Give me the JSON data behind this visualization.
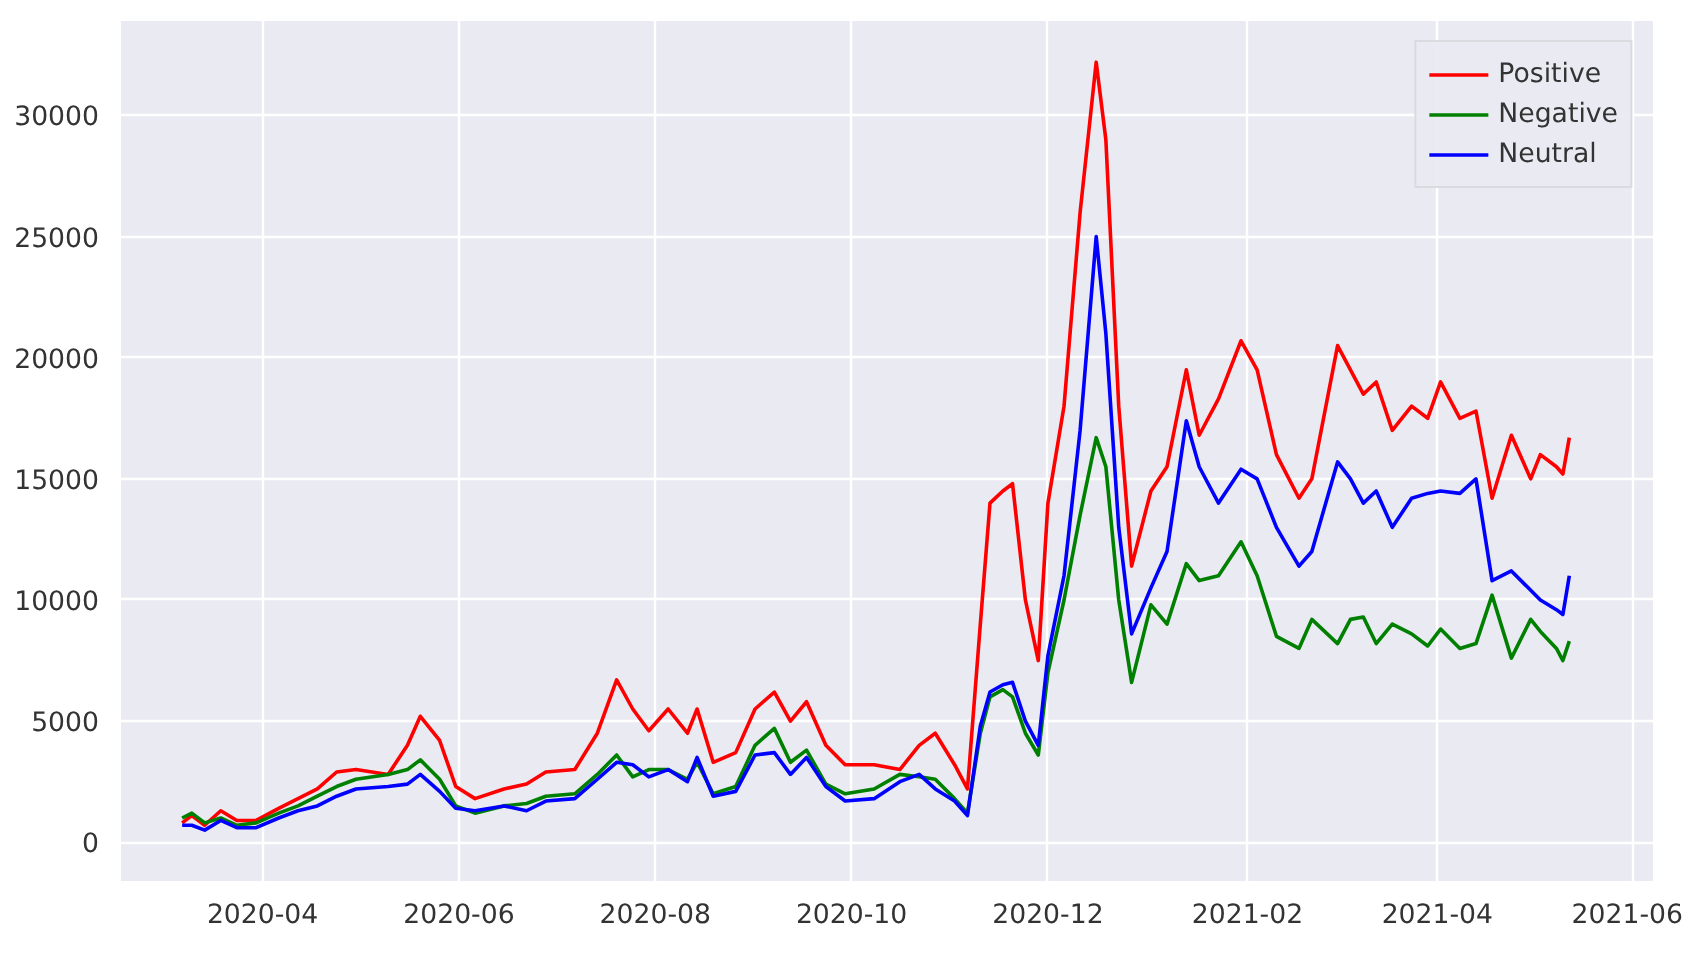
{
  "chart_data": {
    "type": "line",
    "x": [
      "2020-03-07",
      "2020-03-10",
      "2020-03-14",
      "2020-03-19",
      "2020-03-24",
      "2020-03-30",
      "2020-04-06",
      "2020-04-12",
      "2020-04-18",
      "2020-04-24",
      "2020-04-30",
      "2020-05-10",
      "2020-05-16",
      "2020-05-20",
      "2020-05-26",
      "2020-05-31",
      "2020-06-06",
      "2020-06-15",
      "2020-06-22",
      "2020-06-28",
      "2020-07-07",
      "2020-07-14",
      "2020-07-20",
      "2020-07-25",
      "2020-07-30",
      "2020-08-05",
      "2020-08-11",
      "2020-08-14",
      "2020-08-19",
      "2020-08-26",
      "2020-09-01",
      "2020-09-07",
      "2020-09-12",
      "2020-09-17",
      "2020-09-23",
      "2020-09-29",
      "2020-10-08",
      "2020-10-16",
      "2020-10-22",
      "2020-10-27",
      "2020-11-02",
      "2020-11-06",
      "2020-11-10",
      "2020-11-13",
      "2020-11-17",
      "2020-11-20",
      "2020-11-24",
      "2020-11-28",
      "2020-12-01",
      "2020-12-06",
      "2020-12-11",
      "2020-12-16",
      "2020-12-19",
      "2020-12-23",
      "2020-12-27",
      "2021-01-02",
      "2021-01-07",
      "2021-01-13",
      "2021-01-17",
      "2021-01-23",
      "2021-01-30",
      "2021-02-04",
      "2021-02-10",
      "2021-02-17",
      "2021-02-21",
      "2021-03-01",
      "2021-03-05",
      "2021-03-09",
      "2021-03-13",
      "2021-03-18",
      "2021-03-24",
      "2021-03-29",
      "2021-04-02",
      "2021-04-08",
      "2021-04-13",
      "2021-04-18",
      "2021-04-24",
      "2021-04-30",
      "2021-05-03",
      "2021-05-08",
      "2021-05-10",
      "2021-05-12"
    ],
    "series": [
      {
        "name": "Positive",
        "color": "#ff0000",
        "values": [
          800,
          1100,
          700,
          1300,
          900,
          900,
          1400,
          1800,
          2200,
          2900,
          3000,
          2800,
          4000,
          5200,
          4200,
          2300,
          1800,
          2200,
          2400,
          2900,
          3000,
          4500,
          6700,
          5500,
          4600,
          5500,
          4500,
          5500,
          3300,
          3700,
          5500,
          6200,
          5000,
          5800,
          4000,
          3200,
          3200,
          3000,
          4000,
          4500,
          3200,
          2200,
          9000,
          14000,
          14500,
          14800,
          10000,
          7500,
          14000,
          18000,
          26000,
          32200,
          29000,
          18000,
          11400,
          14500,
          15500,
          19500,
          16800,
          18300,
          20700,
          19500,
          16000,
          14200,
          15000,
          20500,
          19500,
          18500,
          19000,
          17000,
          18000,
          17500,
          19000,
          17500,
          17800,
          14200,
          16800,
          15000,
          16000,
          15500,
          15200,
          16700
        ]
      },
      {
        "name": "Negative",
        "color": "#008000",
        "values": [
          1000,
          1200,
          800,
          1000,
          700,
          800,
          1200,
          1500,
          1900,
          2300,
          2600,
          2800,
          3000,
          3400,
          2600,
          1500,
          1200,
          1500,
          1600,
          1900,
          2000,
          2800,
          3600,
          2700,
          3000,
          3000,
          2600,
          3300,
          2000,
          2300,
          4000,
          4700,
          3300,
          3800,
          2400,
          2000,
          2200,
          2800,
          2700,
          2600,
          1800,
          1200,
          4500,
          6000,
          6300,
          6000,
          4500,
          3600,
          7000,
          10000,
          13500,
          16700,
          15500,
          10000,
          6600,
          9800,
          9000,
          11500,
          10800,
          11000,
          12400,
          11000,
          8500,
          8000,
          9200,
          8200,
          9200,
          9300,
          8200,
          9000,
          8600,
          8100,
          8800,
          8000,
          8200,
          10200,
          7600,
          9200,
          8700,
          8000,
          7500,
          8300
        ]
      },
      {
        "name": "Neutral",
        "color": "#0000ff",
        "values": [
          700,
          700,
          500,
          900,
          600,
          600,
          1000,
          1300,
          1500,
          1900,
          2200,
          2300,
          2400,
          2800,
          2100,
          1400,
          1300,
          1500,
          1300,
          1700,
          1800,
          2600,
          3300,
          3200,
          2700,
          3000,
          2500,
          3500,
          1900,
          2100,
          3600,
          3700,
          2800,
          3500,
          2300,
          1700,
          1800,
          2500,
          2800,
          2200,
          1700,
          1100,
          4800,
          6200,
          6500,
          6600,
          5000,
          4000,
          7700,
          11000,
          17000,
          25000,
          21000,
          13000,
          8600,
          10500,
          12000,
          17400,
          15500,
          14000,
          15400,
          15000,
          13000,
          11400,
          12000,
          15700,
          15000,
          14000,
          14500,
          13000,
          14200,
          14400,
          14500,
          14400,
          15000,
          10800,
          11200,
          10400,
          10000,
          9600,
          9400,
          11000
        ]
      }
    ],
    "xlim": [
      "2020-02-17",
      "2021-06-07"
    ],
    "xticks": [
      {
        "value": "2020-04-01",
        "label": "2020-04"
      },
      {
        "value": "2020-06-01",
        "label": "2020-06"
      },
      {
        "value": "2020-08-01",
        "label": "2020-08"
      },
      {
        "value": "2020-10-01",
        "label": "2020-10"
      },
      {
        "value": "2020-12-01",
        "label": "2020-12"
      },
      {
        "value": "2021-02-01",
        "label": "2021-02"
      },
      {
        "value": "2021-04-01",
        "label": "2021-04"
      },
      {
        "value": "2021-06-01",
        "label": "2021-06"
      }
    ],
    "ylim": [
      -1600,
      33900
    ],
    "yticks": [
      0,
      5000,
      10000,
      15000,
      20000,
      25000,
      30000
    ],
    "grid": true,
    "legend": "top right"
  }
}
